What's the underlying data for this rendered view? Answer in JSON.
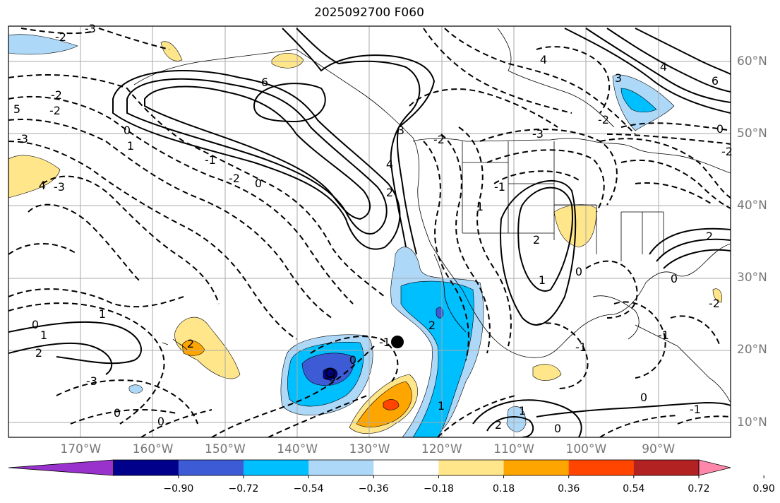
{
  "title": "2025092700 F060",
  "map": {
    "lat_labels": [
      {
        "value": 60,
        "text": "60°N"
      },
      {
        "value": 50,
        "text": "50°N"
      },
      {
        "value": 40,
        "text": "40°N"
      },
      {
        "value": 30,
        "text": "30°N"
      },
      {
        "value": 20,
        "text": "20°N"
      },
      {
        "value": 10,
        "text": "10°N"
      }
    ],
    "lon_labels": [
      {
        "value": -170,
        "text": "170°W"
      },
      {
        "value": -160,
        "text": "160°W"
      },
      {
        "value": -150,
        "text": "150°W"
      },
      {
        "value": -140,
        "text": "140°W"
      },
      {
        "value": -130,
        "text": "130°W"
      },
      {
        "value": -120,
        "text": "120°W"
      },
      {
        "value": -110,
        "text": "110°W"
      },
      {
        "value": -100,
        "text": "100°W"
      },
      {
        "value": -90,
        "text": "90°W"
      }
    ],
    "extent": {
      "lon_min": -180,
      "lon_max": -80,
      "lat_min": 8,
      "lat_max": 65
    },
    "contour_labels": [
      "-3",
      "-2",
      "-1",
      "0",
      "1",
      "2",
      "3",
      "4",
      "5",
      "6"
    ]
  },
  "colorbar": {
    "ticks": [
      "−0.90",
      "−0.72",
      "−0.54",
      "−0.36",
      "−0.18",
      "0.18",
      "0.36",
      "0.54",
      "0.72",
      "0.90"
    ],
    "colors": [
      "#9932cc",
      "#00008b",
      "#3d5bd4",
      "#00bfff",
      "#add8f8",
      "#ffffff",
      "#ffe68a",
      "#ffa500",
      "#ff4500",
      "#b22222",
      "#ff88aa"
    ]
  }
}
